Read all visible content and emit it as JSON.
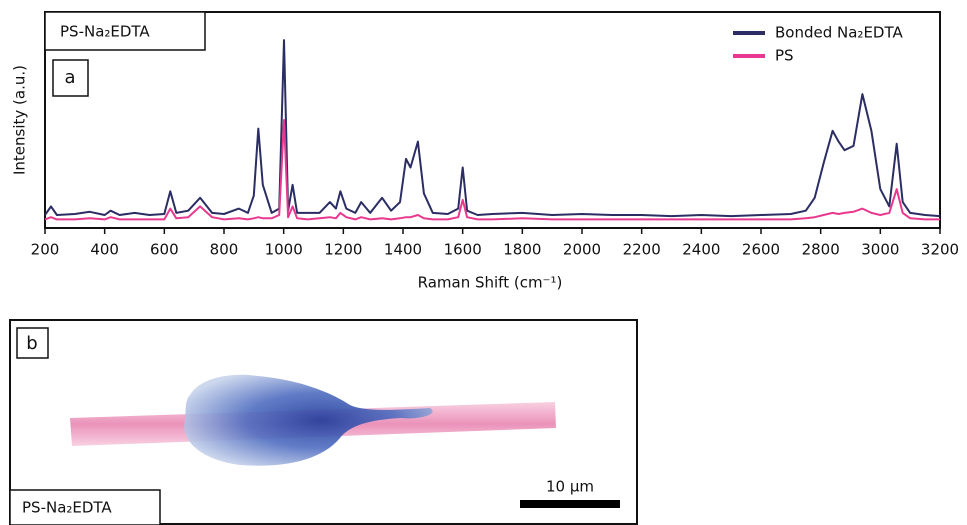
{
  "chart_data": {
    "type": "line",
    "sample_label": "PS-Na₂EDTA",
    "panel_label": "a",
    "xlabel": "Raman Shift (cm⁻¹)",
    "ylabel": "Intensity (a.u.)",
    "x": [
      200,
      220,
      240,
      300,
      350,
      400,
      420,
      450,
      500,
      550,
      600,
      620,
      640,
      680,
      720,
      760,
      800,
      850,
      880,
      900,
      915,
      930,
      960,
      985,
      1001,
      1015,
      1030,
      1045,
      1080,
      1120,
      1155,
      1175,
      1190,
      1210,
      1240,
      1260,
      1290,
      1330,
      1360,
      1390,
      1410,
      1425,
      1450,
      1470,
      1500,
      1550,
      1585,
      1600,
      1615,
      1650,
      1700,
      1800,
      1900,
      2000,
      2100,
      2200,
      2300,
      2400,
      2500,
      2600,
      2700,
      2750,
      2780,
      2810,
      2840,
      2860,
      2880,
      2910,
      2940,
      2970,
      3000,
      3030,
      3055,
      3075,
      3100,
      3150,
      3200
    ],
    "series": [
      {
        "name": "Bonded Na₂EDTA",
        "color": "#2b2d63",
        "values": [
          6,
          10,
          6,
          6.5,
          7.5,
          6,
          8,
          6,
          7,
          6,
          6.5,
          17,
          7,
          8,
          14,
          7,
          6.5,
          9,
          7,
          15,
          46,
          20,
          7,
          9,
          87,
          8,
          20,
          7,
          7,
          7,
          12,
          9,
          17,
          9,
          7,
          12,
          7,
          14,
          8,
          12,
          32,
          28,
          40,
          16,
          7,
          6.5,
          9,
          28,
          8,
          6,
          6.5,
          7,
          6,
          6.5,
          6,
          6,
          5.5,
          6,
          5.5,
          6,
          6.5,
          8,
          14,
          30,
          45,
          40,
          36,
          38,
          62,
          45,
          18,
          10,
          39,
          12,
          7,
          6,
          5.5
        ]
      },
      {
        "name": "PS",
        "color": "#e8388f",
        "values": [
          4,
          5,
          4,
          4,
          4.5,
          4,
          5,
          4,
          4,
          4,
          4,
          9,
          4.5,
          5,
          10,
          5,
          4,
          4.5,
          4,
          4.5,
          5,
          4.5,
          4.5,
          6,
          50,
          5,
          10,
          4.5,
          4,
          4.5,
          5,
          4.5,
          7,
          5,
          4,
          5,
          4,
          4.5,
          4,
          4.5,
          5,
          5,
          6,
          4.5,
          4,
          4,
          5,
          13,
          5,
          4,
          4,
          4.5,
          4,
          4,
          4,
          4,
          4,
          4,
          4,
          4,
          4,
          4.5,
          5,
          6,
          7,
          6.5,
          7,
          7.5,
          9,
          7,
          6,
          7,
          18,
          7,
          4.5,
          4,
          4
        ]
      }
    ],
    "xlim": [
      200,
      3200
    ],
    "xticks": [
      200,
      400,
      600,
      800,
      1000,
      1200,
      1400,
      1600,
      1800,
      2000,
      2200,
      2400,
      2600,
      2800,
      3000,
      3200
    ],
    "ylim": [
      0,
      100
    ],
    "legend": "upper right"
  },
  "panel_b": {
    "label": "b",
    "sample": "PS-Na₂EDTA",
    "scale_bar": "10 µm"
  }
}
